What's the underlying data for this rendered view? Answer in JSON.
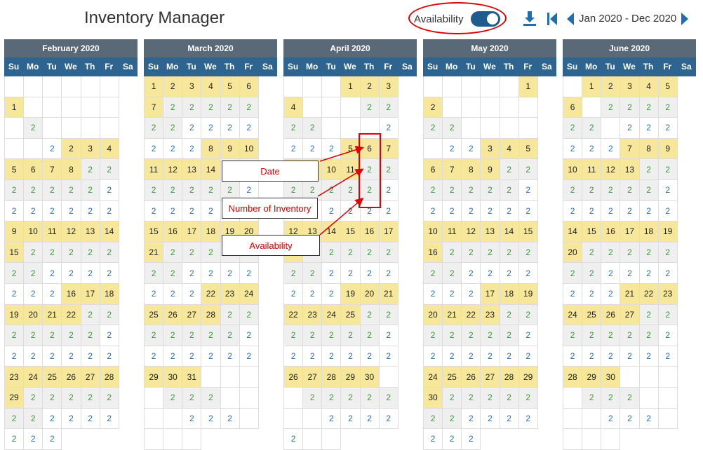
{
  "app": {
    "title": "Inventory Manager"
  },
  "toolbar": {
    "availability_label": "Availability",
    "availability_on": true,
    "date_range": "Jan 2020 - Dec 2020",
    "icons": [
      "download-icon",
      "first-page-icon",
      "prev-arrow-icon",
      "next-arrow-icon"
    ]
  },
  "weekdays": [
    "Su",
    "Mo",
    "Tu",
    "We",
    "Th",
    "Fr",
    "Sa"
  ],
  "months": [
    {
      "name": "February 2020",
      "start": 6,
      "days": 29,
      "inventory": "2",
      "availability": "2"
    },
    {
      "name": "March 2020",
      "start": 0,
      "days": 31,
      "inventory": "2",
      "availability": "2"
    },
    {
      "name": "April 2020",
      "start": 3,
      "days": 30,
      "inventory": "2",
      "availability": "2"
    },
    {
      "name": "May 2020",
      "start": 5,
      "days": 31,
      "inventory": "2",
      "availability": "2"
    },
    {
      "name": "June 2020",
      "start": 1,
      "days": 30,
      "inventory": "2",
      "availability": "2"
    }
  ],
  "annotations": {
    "date": "Date",
    "inventory": "Number of Inventory",
    "availability": "Availability"
  },
  "colors": {
    "date_bg": "#f6e79b",
    "inventory_text": "#3a9a3a",
    "availability_text": "#2a6fba",
    "header_blue": "#2e6590",
    "accent_red": "#e00000"
  }
}
